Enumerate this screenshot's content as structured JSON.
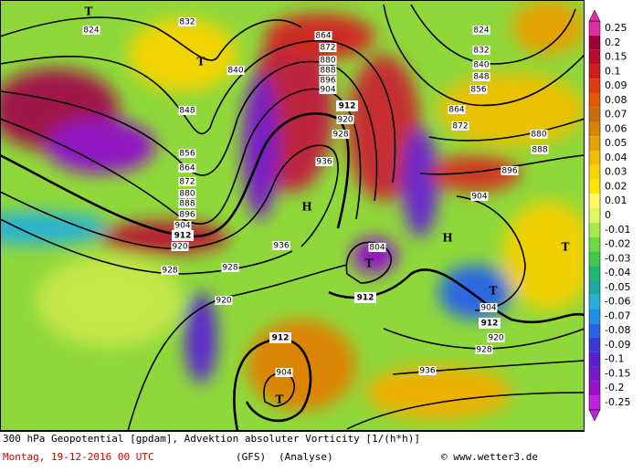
{
  "map": {
    "caption": "300 hPa Geopotential [gpdam], Advektion absoluter Vorticity [1/(h*h)]",
    "date": "Montag, 19-12-2016  00 UTC",
    "model": "(GFS)",
    "run": "(Analyse)",
    "credit": "© www.wetter3.de",
    "contour_labels": [
      824,
      832,
      840,
      848,
      856,
      864,
      872,
      880,
      888,
      896,
      904,
      912,
      920,
      928,
      928,
      920,
      936,
      912,
      904,
      864,
      872,
      880,
      888,
      896,
      904,
      912,
      920,
      928,
      936,
      804,
      912,
      824,
      832,
      840,
      848,
      856,
      864,
      872,
      880,
      888,
      896,
      904,
      904,
      912,
      920,
      928,
      936
    ],
    "pressure_centers": [
      "T",
      "T",
      "H",
      "H",
      "T",
      "T",
      "T",
      "T"
    ],
    "colorbar": {
      "ticks": [
        0.25,
        0.2,
        0.15,
        0.1,
        0.09,
        0.08,
        0.07,
        0.06,
        0.05,
        0.04,
        0.03,
        0.02,
        0.01,
        0,
        -0.01,
        -0.02,
        -0.03,
        -0.04,
        -0.05,
        -0.06,
        -0.07,
        -0.08,
        -0.09,
        -0.1,
        -0.15,
        -0.2,
        -0.25
      ],
      "colors": [
        "#e030a0",
        "#a00038",
        "#b80c30",
        "#d01c1c",
        "#e03c10",
        "#e45a00",
        "#c86c10",
        "#d88400",
        "#e8a000",
        "#f4bc00",
        "#f8d400",
        "#ffe600",
        "#fff860",
        "#e0f860",
        "#a8e848",
        "#70d840",
        "#40c848",
        "#20b870",
        "#20a8a0",
        "#28b0d8",
        "#2090e8",
        "#2864e8",
        "#3838d8",
        "#5820d0",
        "#7818c8",
        "#9810c8",
        "#c020e0"
      ]
    }
  }
}
